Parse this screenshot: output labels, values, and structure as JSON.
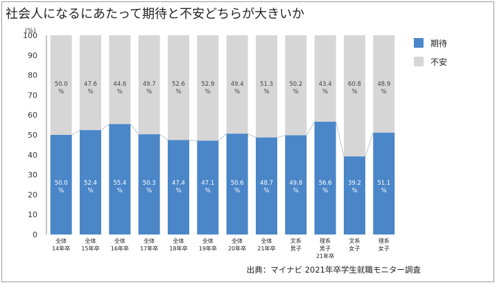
{
  "title": "社会人になるにあたって期待と不安どちらが大きいか",
  "source": "出典：マイナビ 2021年卒学生就職モニター調査",
  "colors": {
    "expect": "#4a86c8",
    "anxiety": "#d6d6d6",
    "connector": "#b9c4d2"
  },
  "chart_data": {
    "type": "bar",
    "stacked": true,
    "unit_label": "(%)",
    "ylim": [
      0,
      100
    ],
    "yticks": [
      0,
      10,
      20,
      30,
      40,
      50,
      60,
      70,
      80,
      90,
      100
    ],
    "categories": [
      [
        "全体",
        "14年卒"
      ],
      [
        "全体",
        "15年卒"
      ],
      [
        "全体",
        "16年卒"
      ],
      [
        "全体",
        "17年卒"
      ],
      [
        "全体",
        "18年卒"
      ],
      [
        "全体",
        "19年卒"
      ],
      [
        "全体",
        "20年卒"
      ],
      [
        "全体",
        "21年卒"
      ],
      [
        "文系",
        "男子"
      ],
      [
        "理系",
        "男子",
        "21年卒"
      ],
      [
        "文系",
        "女子"
      ],
      [
        "理系",
        "女子"
      ]
    ],
    "value_suffix": "%",
    "series": [
      {
        "name": "期待",
        "values": [
          50.0,
          52.4,
          55.4,
          50.3,
          47.4,
          47.1,
          50.6,
          48.7,
          49.8,
          56.6,
          39.2,
          51.1
        ]
      },
      {
        "name": "不安",
        "values": [
          50.0,
          47.6,
          44.6,
          49.7,
          52.6,
          52.9,
          49.4,
          51.3,
          50.2,
          43.4,
          60.8,
          48.9
        ]
      }
    ],
    "legend_position": "right"
  }
}
